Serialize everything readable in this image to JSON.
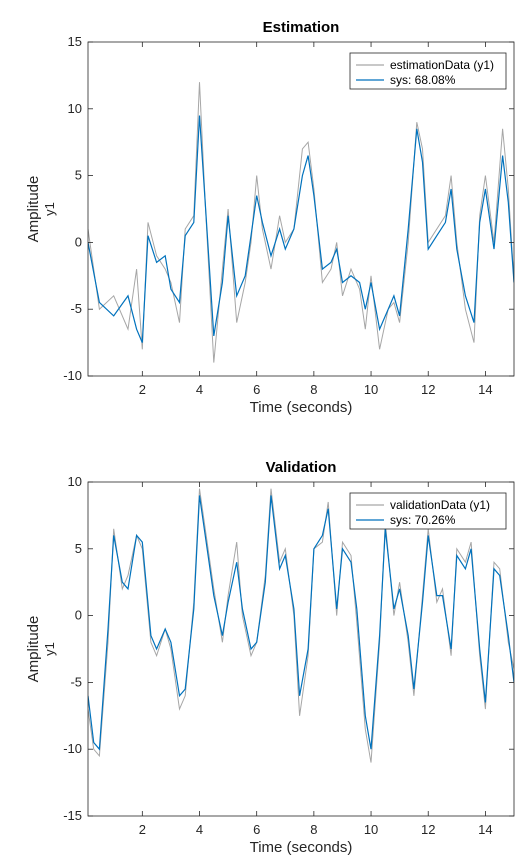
{
  "chart_data": [
    {
      "type": "line",
      "title": "Estimation",
      "xlabel": "Time (seconds)",
      "ylabel": "Amplitude",
      "ylabel_sub": "y1",
      "xlim": [
        0.1,
        15
      ],
      "ylim": [
        -10,
        15
      ],
      "xticks": [
        2,
        4,
        6,
        8,
        10,
        12,
        14
      ],
      "yticks": [
        -10,
        -5,
        0,
        5,
        10,
        15
      ],
      "legend_position": "top-right",
      "colors": {
        "measured": "#a6a6a6",
        "model": "#0072bd"
      },
      "series": [
        {
          "name": "estimationData (y1)",
          "color": "#a6a6a6",
          "x": [
            0.1,
            0.5,
            1.0,
            1.5,
            1.8,
            2.0,
            2.2,
            2.5,
            2.8,
            3.0,
            3.3,
            3.5,
            3.8,
            4.0,
            4.2,
            4.5,
            4.8,
            5.0,
            5.3,
            5.6,
            5.8,
            6.0,
            6.2,
            6.5,
            6.8,
            7.0,
            7.3,
            7.6,
            7.8,
            8.0,
            8.3,
            8.6,
            8.8,
            9.0,
            9.3,
            9.6,
            9.8,
            10.0,
            10.3,
            10.6,
            10.8,
            11.0,
            11.3,
            11.6,
            11.8,
            12.0,
            12.3,
            12.6,
            12.8,
            13.0,
            13.3,
            13.6,
            13.8,
            14.0,
            14.3,
            14.6,
            14.8,
            15.0
          ],
          "values": [
            1.0,
            -5.0,
            -4.0,
            -6.5,
            -2.0,
            -8.0,
            1.5,
            -1.0,
            -2.0,
            -3.0,
            -6.0,
            1.0,
            2.0,
            12.0,
            3.0,
            -9.0,
            -2.0,
            2.5,
            -6.0,
            -3.0,
            0.0,
            5.0,
            1.0,
            -2.0,
            2.0,
            0.0,
            1.0,
            7.0,
            7.5,
            4.0,
            -3.0,
            -2.0,
            0.0,
            -4.0,
            -2.0,
            -3.5,
            -6.5,
            -2.5,
            -8.0,
            -5.0,
            -4.5,
            -6.0,
            0.0,
            9.0,
            7.0,
            0.0,
            1.0,
            2.0,
            5.0,
            0.0,
            -5.0,
            -7.5,
            2.0,
            5.0,
            0.0,
            8.5,
            4.0,
            -3.0
          ]
        },
        {
          "name": "sys: 68.08%",
          "color": "#0072bd",
          "x": [
            0.1,
            0.5,
            1.0,
            1.5,
            1.8,
            2.0,
            2.2,
            2.5,
            2.8,
            3.0,
            3.3,
            3.5,
            3.8,
            4.0,
            4.2,
            4.5,
            4.8,
            5.0,
            5.3,
            5.6,
            5.8,
            6.0,
            6.2,
            6.5,
            6.8,
            7.0,
            7.3,
            7.6,
            7.8,
            8.0,
            8.3,
            8.6,
            8.8,
            9.0,
            9.3,
            9.6,
            9.8,
            10.0,
            10.3,
            10.6,
            10.8,
            11.0,
            11.3,
            11.6,
            11.8,
            12.0,
            12.3,
            12.6,
            12.8,
            13.0,
            13.3,
            13.6,
            13.8,
            14.0,
            14.3,
            14.6,
            14.8,
            15.0
          ],
          "values": [
            0.0,
            -4.5,
            -5.5,
            -4.0,
            -6.5,
            -7.5,
            0.5,
            -1.5,
            -1.0,
            -3.5,
            -4.5,
            0.5,
            1.5,
            9.5,
            3.0,
            -7.0,
            -3.0,
            2.0,
            -4.0,
            -2.5,
            0.5,
            3.5,
            1.5,
            -1.0,
            1.0,
            -0.5,
            1.0,
            5.0,
            6.5,
            3.5,
            -2.0,
            -1.5,
            -0.5,
            -3.0,
            -2.5,
            -3.0,
            -5.0,
            -3.0,
            -6.5,
            -5.0,
            -4.0,
            -5.5,
            1.0,
            8.5,
            6.0,
            -0.5,
            0.5,
            1.5,
            4.0,
            -0.5,
            -4.0,
            -6.0,
            1.5,
            4.0,
            -0.5,
            6.5,
            3.0,
            -3.0
          ]
        }
      ]
    },
    {
      "type": "line",
      "title": "Validation",
      "xlabel": "Time (seconds)",
      "ylabel": "Amplitude",
      "ylabel_sub": "y1",
      "xlim": [
        0.1,
        15
      ],
      "ylim": [
        -15,
        10
      ],
      "xticks": [
        2,
        4,
        6,
        8,
        10,
        12,
        14
      ],
      "yticks": [
        -15,
        -10,
        -5,
        0,
        5,
        10
      ],
      "legend_position": "top-right",
      "colors": {
        "measured": "#a6a6a6",
        "model": "#0072bd"
      },
      "series": [
        {
          "name": "validationData (y1)",
          "color": "#a6a6a6",
          "x": [
            0.1,
            0.3,
            0.5,
            0.8,
            1.0,
            1.3,
            1.5,
            1.8,
            2.0,
            2.3,
            2.5,
            2.8,
            3.0,
            3.3,
            3.5,
            3.8,
            4.0,
            4.3,
            4.5,
            4.8,
            5.0,
            5.3,
            5.5,
            5.8,
            6.0,
            6.3,
            6.5,
            6.8,
            7.0,
            7.3,
            7.5,
            7.8,
            8.0,
            8.3,
            8.5,
            8.8,
            9.0,
            9.3,
            9.5,
            9.8,
            10.0,
            10.3,
            10.5,
            10.8,
            11.0,
            11.3,
            11.5,
            11.8,
            12.0,
            12.3,
            12.5,
            12.8,
            13.0,
            13.3,
            13.5,
            13.8,
            14.0,
            14.3,
            14.5,
            14.8,
            15.0
          ],
          "values": [
            -7.0,
            -10.0,
            -10.5,
            -2.0,
            6.5,
            2.0,
            3.0,
            6.0,
            5.0,
            -2.0,
            -3.0,
            -1.0,
            -2.5,
            -7.0,
            -6.0,
            1.0,
            9.5,
            5.0,
            2.0,
            -2.0,
            1.5,
            5.5,
            0.0,
            -3.0,
            -2.0,
            3.0,
            9.5,
            4.0,
            5.0,
            0.0,
            -7.5,
            -3.0,
            5.0,
            5.5,
            8.5,
            0.0,
            5.5,
            4.5,
            -0.5,
            -8.5,
            -11.0,
            -2.0,
            7.0,
            0.0,
            2.5,
            -2.0,
            -6.0,
            1.5,
            6.5,
            1.0,
            2.0,
            -3.0,
            5.0,
            4.0,
            5.5,
            -3.0,
            -7.0,
            4.0,
            3.5,
            -2.0,
            -4.0
          ]
        },
        {
          "name": "sys: 70.26%",
          "color": "#0072bd",
          "x": [
            0.1,
            0.3,
            0.5,
            0.8,
            1.0,
            1.3,
            1.5,
            1.8,
            2.0,
            2.3,
            2.5,
            2.8,
            3.0,
            3.3,
            3.5,
            3.8,
            4.0,
            4.3,
            4.5,
            4.8,
            5.0,
            5.3,
            5.5,
            5.8,
            6.0,
            6.3,
            6.5,
            6.8,
            7.0,
            7.3,
            7.5,
            7.8,
            8.0,
            8.3,
            8.5,
            8.8,
            9.0,
            9.3,
            9.5,
            9.8,
            10.0,
            10.3,
            10.5,
            10.8,
            11.0,
            11.3,
            11.5,
            11.8,
            12.0,
            12.3,
            12.5,
            12.8,
            13.0,
            13.3,
            13.5,
            13.8,
            14.0,
            14.3,
            14.5,
            14.8,
            15.0
          ],
          "values": [
            -6.0,
            -9.5,
            -10.0,
            -1.0,
            6.0,
            2.5,
            2.0,
            6.0,
            5.5,
            -1.5,
            -2.5,
            -1.0,
            -2.0,
            -6.0,
            -5.5,
            0.5,
            9.0,
            4.5,
            1.5,
            -1.5,
            1.0,
            4.0,
            0.5,
            -2.5,
            -2.0,
            2.5,
            9.0,
            3.5,
            4.5,
            0.5,
            -6.0,
            -2.5,
            5.0,
            6.0,
            8.0,
            0.5,
            5.0,
            4.0,
            0.5,
            -7.5,
            -10.0,
            -1.5,
            6.5,
            0.5,
            2.0,
            -1.5,
            -5.5,
            1.0,
            6.0,
            1.5,
            1.5,
            -2.5,
            4.5,
            3.5,
            5.0,
            -2.5,
            -6.5,
            3.5,
            3.0,
            -1.5,
            -5.0
          ]
        }
      ]
    }
  ]
}
